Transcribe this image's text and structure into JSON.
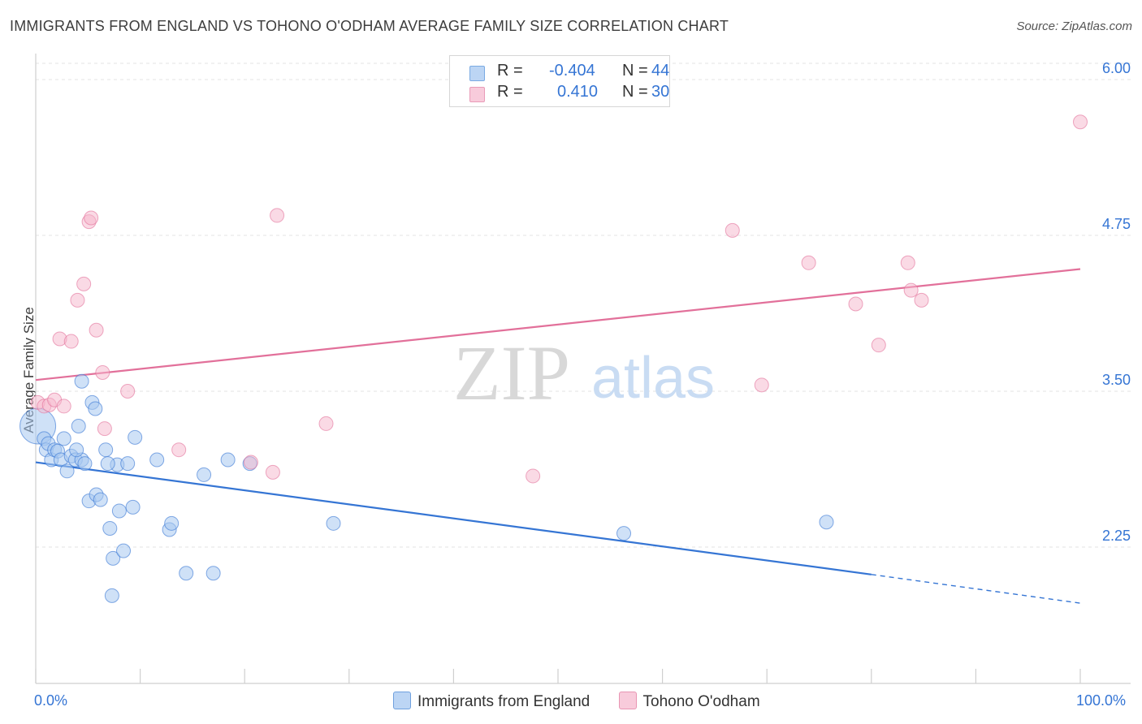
{
  "title": "IMMIGRANTS FROM ENGLAND VS TOHONO O'ODHAM AVERAGE FAMILY SIZE CORRELATION CHART",
  "source": "Source: ZipAtlas.com",
  "watermark": {
    "zip": "ZIP",
    "atlas": "atlas"
  },
  "legend_stats": [
    {
      "r_label": "R =",
      "r_value": "-0.404",
      "n_label": "N =",
      "n_value": "44",
      "color": "#9cc3f0"
    },
    {
      "r_label": "R =",
      "r_value": "0.410",
      "n_label": "N =",
      "n_value": "30",
      "color": "#f5b5cb"
    }
  ],
  "chart_data": {
    "type": "scatter",
    "title": "IMMIGRANTS FROM ENGLAND VS TOHONO O'ODHAM AVERAGE FAMILY SIZE CORRELATION CHART",
    "xlabel": "",
    "ylabel": "Average Family Size",
    "xlim": [
      0,
      100
    ],
    "ylim": [
      1.0,
      6.2
    ],
    "x_tick_labels": [
      "0.0%",
      "100.0%"
    ],
    "y_ticks": [
      2.25,
      3.5,
      4.75,
      6.0
    ],
    "y_tick_labels": [
      "2.25",
      "3.50",
      "4.75",
      "6.00"
    ],
    "grid": true,
    "series": [
      {
        "name": "Immigrants from England",
        "color": "#3575d4",
        "fill": "#a8c8f0",
        "points": [
          [
            0.2,
            3.22
          ],
          [
            0.8,
            3.12
          ],
          [
            1.0,
            3.03
          ],
          [
            1.2,
            3.08
          ],
          [
            1.5,
            2.95
          ],
          [
            1.8,
            3.03
          ],
          [
            2.1,
            3.02
          ],
          [
            2.4,
            2.95
          ],
          [
            2.7,
            3.12
          ],
          [
            3.0,
            2.86
          ],
          [
            3.4,
            2.98
          ],
          [
            3.8,
            2.95
          ],
          [
            4.1,
            3.22
          ],
          [
            4.4,
            2.95
          ],
          [
            4.4,
            3.58
          ],
          [
            4.7,
            2.92
          ],
          [
            5.1,
            2.62
          ],
          [
            5.4,
            3.41
          ],
          [
            5.7,
            3.36
          ],
          [
            5.8,
            2.67
          ],
          [
            6.2,
            2.63
          ],
          [
            6.7,
            3.03
          ],
          [
            7.1,
            2.4
          ],
          [
            7.4,
            2.16
          ],
          [
            7.8,
            2.91
          ],
          [
            8.0,
            2.54
          ],
          [
            8.4,
            2.22
          ],
          [
            8.8,
            2.92
          ],
          [
            9.3,
            2.57
          ],
          [
            9.5,
            3.13
          ],
          [
            11.6,
            2.95
          ],
          [
            12.8,
            2.39
          ],
          [
            13.0,
            2.44
          ],
          [
            14.4,
            2.04
          ],
          [
            16.1,
            2.83
          ],
          [
            17.0,
            2.04
          ],
          [
            18.4,
            2.95
          ],
          [
            20.5,
            2.92
          ],
          [
            7.3,
            1.86
          ],
          [
            28.5,
            2.44
          ],
          [
            56.3,
            2.36
          ],
          [
            75.7,
            2.45
          ],
          [
            3.9,
            3.03
          ],
          [
            6.9,
            2.92
          ]
        ],
        "trend": {
          "x0": 0,
          "y0": 2.93,
          "x1": 80,
          "y1": 2.03,
          "dash_to_x": 100,
          "dash_to_y": 1.8
        }
      },
      {
        "name": "Tohono O'odham",
        "color": "#e2709a",
        "fill": "#f5b5cb",
        "points": [
          [
            0.2,
            3.41
          ],
          [
            0.8,
            3.38
          ],
          [
            1.3,
            3.39
          ],
          [
            1.8,
            3.43
          ],
          [
            2.3,
            3.92
          ],
          [
            2.7,
            3.38
          ],
          [
            3.4,
            3.9
          ],
          [
            4.0,
            4.23
          ],
          [
            4.6,
            4.36
          ],
          [
            5.1,
            4.86
          ],
          [
            5.3,
            4.89
          ],
          [
            5.8,
            3.99
          ],
          [
            6.4,
            3.65
          ],
          [
            6.6,
            3.2
          ],
          [
            8.8,
            3.5
          ],
          [
            13.7,
            3.03
          ],
          [
            20.6,
            2.93
          ],
          [
            22.7,
            2.85
          ],
          [
            23.1,
            4.91
          ],
          [
            27.8,
            3.24
          ],
          [
            47.6,
            2.82
          ],
          [
            66.7,
            4.79
          ],
          [
            69.5,
            3.55
          ],
          [
            74.0,
            4.53
          ],
          [
            78.5,
            4.2
          ],
          [
            80.7,
            3.87
          ],
          [
            83.5,
            4.53
          ],
          [
            83.8,
            4.31
          ],
          [
            84.8,
            4.23
          ],
          [
            100.0,
            5.66
          ]
        ],
        "trend": {
          "x0": 0,
          "y0": 3.59,
          "x1": 100,
          "y1": 4.48
        }
      }
    ]
  },
  "legend": [
    {
      "label": "Immigrants from England",
      "color": "#a8c8f0",
      "border": "#6fa0de"
    },
    {
      "label": "Tohono O'odham",
      "color": "#f5c3d4",
      "border": "#e895b3"
    }
  ]
}
